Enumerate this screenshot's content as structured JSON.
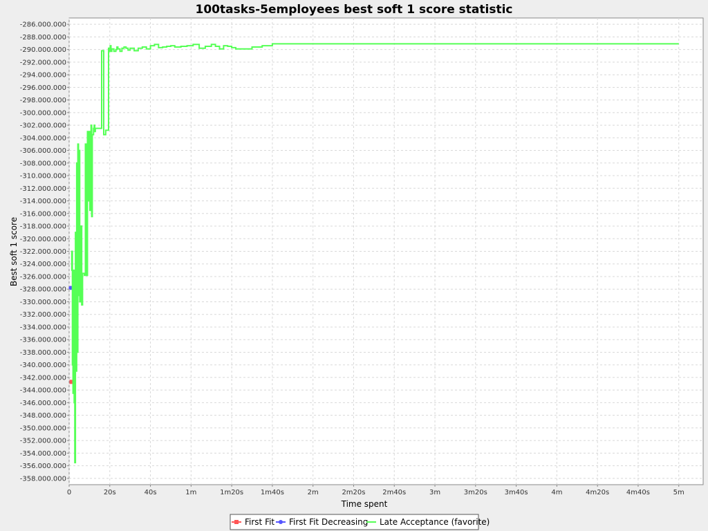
{
  "chart_data": {
    "type": "line",
    "title": "100tasks-5employees best soft 1 score statistic",
    "xlabel": "Time spent",
    "ylabel": "Best soft 1 score",
    "xlim": [
      0,
      312
    ],
    "ylim": [
      -359000000,
      -285000000
    ],
    "grid": true,
    "legend_position": "bottom",
    "x_ticks": [
      {
        "value": 0,
        "label": "0"
      },
      {
        "value": 20,
        "label": "20s"
      },
      {
        "value": 40,
        "label": "40s"
      },
      {
        "value": 60,
        "label": "1m"
      },
      {
        "value": 80,
        "label": "1m20s"
      },
      {
        "value": 100,
        "label": "1m40s"
      },
      {
        "value": 120,
        "label": "2m"
      },
      {
        "value": 140,
        "label": "2m20s"
      },
      {
        "value": 160,
        "label": "2m40s"
      },
      {
        "value": 180,
        "label": "3m"
      },
      {
        "value": 200,
        "label": "3m20s"
      },
      {
        "value": 220,
        "label": "3m40s"
      },
      {
        "value": 240,
        "label": "4m"
      },
      {
        "value": 260,
        "label": "4m20s"
      },
      {
        "value": 280,
        "label": "4m40s"
      },
      {
        "value": 300,
        "label": "5m"
      }
    ],
    "y_ticks": [
      {
        "value": -286000000,
        "label": "-286.000.000"
      },
      {
        "value": -288000000,
        "label": "-288.000.000"
      },
      {
        "value": -290000000,
        "label": "-290.000.000"
      },
      {
        "value": -292000000,
        "label": "-292.000.000"
      },
      {
        "value": -294000000,
        "label": "-294.000.000"
      },
      {
        "value": -296000000,
        "label": "-296.000.000"
      },
      {
        "value": -298000000,
        "label": "-298.000.000"
      },
      {
        "value": -300000000,
        "label": "-300.000.000"
      },
      {
        "value": -302000000,
        "label": "-302.000.000"
      },
      {
        "value": -304000000,
        "label": "-304.000.000"
      },
      {
        "value": -306000000,
        "label": "-306.000.000"
      },
      {
        "value": -308000000,
        "label": "-308.000.000"
      },
      {
        "value": -310000000,
        "label": "-310.000.000"
      },
      {
        "value": -312000000,
        "label": "-312.000.000"
      },
      {
        "value": -314000000,
        "label": "-314.000.000"
      },
      {
        "value": -316000000,
        "label": "-316.000.000"
      },
      {
        "value": -318000000,
        "label": "-318.000.000"
      },
      {
        "value": -320000000,
        "label": "-320.000.000"
      },
      {
        "value": -322000000,
        "label": "-322.000.000"
      },
      {
        "value": -324000000,
        "label": "-324.000.000"
      },
      {
        "value": -326000000,
        "label": "-326.000.000"
      },
      {
        "value": -328000000,
        "label": "-328.000.000"
      },
      {
        "value": -330000000,
        "label": "-330.000.000"
      },
      {
        "value": -332000000,
        "label": "-332.000.000"
      },
      {
        "value": -334000000,
        "label": "-334.000.000"
      },
      {
        "value": -336000000,
        "label": "-336.000.000"
      },
      {
        "value": -338000000,
        "label": "-338.000.000"
      },
      {
        "value": -340000000,
        "label": "-340.000.000"
      },
      {
        "value": -342000000,
        "label": "-342.000.000"
      },
      {
        "value": -344000000,
        "label": "-344.000.000"
      },
      {
        "value": -346000000,
        "label": "-346.000.000"
      },
      {
        "value": -348000000,
        "label": "-348.000.000"
      },
      {
        "value": -350000000,
        "label": "-350.000.000"
      },
      {
        "value": -352000000,
        "label": "-352.000.000"
      },
      {
        "value": -354000000,
        "label": "-354.000.000"
      },
      {
        "value": -356000000,
        "label": "-356.000.000"
      },
      {
        "value": -358000000,
        "label": "-358.000.000"
      }
    ],
    "series": [
      {
        "name": "First Fit",
        "color": "#ff5555",
        "marker": "square",
        "x": [
          1.2
        ],
        "y": [
          -342700000
        ]
      },
      {
        "name": "First Fit Decreasing",
        "color": "#5555ff",
        "marker": "circle",
        "x": [
          0.8
        ],
        "y": [
          -327800000
        ]
      },
      {
        "name": "Late Acceptance (favorite)",
        "color": "#55ff55",
        "marker": "none",
        "x": [
          1.0,
          1.3,
          1.6,
          1.9,
          2.2,
          2.5,
          2.8,
          3.1,
          3.4,
          3.7,
          4.0,
          4.3,
          4.6,
          4.9,
          5.2,
          5.5,
          5.8,
          6.2,
          6.6,
          7.0,
          7.5,
          8.0,
          8.5,
          9.0,
          9.3,
          9.6,
          9.9,
          10.2,
          10.5,
          10.8,
          11.1,
          11.4,
          11.7,
          12.0,
          12.3,
          12.6,
          12.9,
          13.2,
          13.5,
          14.0,
          15.0,
          16.0,
          17.0,
          18.0,
          19.0,
          19.4,
          19.8,
          20.2,
          20.6,
          21.0,
          22.0,
          23.0,
          23.5,
          24.0,
          25.0,
          26.0,
          27.0,
          28.0,
          29.0,
          30.0,
          32.0,
          34.0,
          36.0,
          38.0,
          40.0,
          42.0,
          44.0,
          46.0,
          48.0,
          50.0,
          52.0,
          55.0,
          58.0,
          61.0,
          64.0,
          67.0,
          70.0,
          72.0,
          74.0,
          76.0,
          78.0,
          80.0,
          82.0,
          85.0,
          90.0,
          95.0,
          100.0,
          110.0,
          130.0,
          160.0,
          200.0,
          250.0,
          300.0
        ],
        "y": [
          -325000000,
          -322000000,
          -340000000,
          -344500000,
          -325000000,
          -346000000,
          -355500000,
          -319000000,
          -341000000,
          -308000000,
          -338000000,
          -305000000,
          -329000000,
          -306000000,
          -330000000,
          -318000000,
          -318000000,
          -330500000,
          -325500000,
          -325500000,
          -325800000,
          -305000000,
          -325800000,
          -303000000,
          -314000000,
          -303000000,
          -303000000,
          -315500000,
          -303000000,
          -302000000,
          -316500000,
          -303500000,
          -303500000,
          -302500000,
          -302000000,
          -303000000,
          -302500000,
          -302500000,
          -302500000,
          -302500000,
          -302500000,
          -290200000,
          -303500000,
          -302800000,
          -302800000,
          -289800000,
          -290300000,
          -289400000,
          -290300000,
          -289900000,
          -290300000,
          -290000000,
          -289600000,
          -289900000,
          -290300000,
          -289800000,
          -289600000,
          -289800000,
          -290100000,
          -289800000,
          -290200000,
          -289800000,
          -289600000,
          -289900000,
          -289400000,
          -289200000,
          -289700000,
          -289600000,
          -289500000,
          -289400000,
          -289600000,
          -289500000,
          -289400000,
          -289200000,
          -289800000,
          -289500000,
          -289200000,
          -289500000,
          -289900000,
          -289400000,
          -289500000,
          -289700000,
          -289900000,
          -289900000,
          -289600000,
          -289400000,
          -289100000,
          -289100000,
          -289100000,
          -289100000,
          -289100000,
          -289100000,
          -289100000
        ]
      }
    ]
  }
}
